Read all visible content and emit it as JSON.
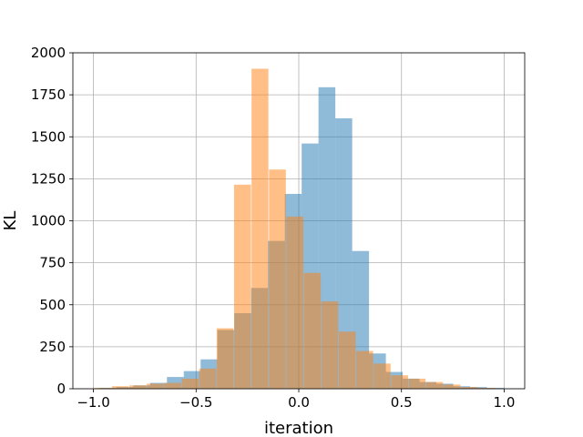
{
  "chart_data": {
    "type": "histogram",
    "title": "",
    "xlabel": "iteration",
    "ylabel": "KL",
    "xlim": [
      -1.1,
      1.1
    ],
    "ylim": [
      0,
      2000
    ],
    "xticks": [
      -1.0,
      -0.5,
      0.0,
      0.5,
      1.0
    ],
    "xtick_labels": [
      "−1.0",
      "−0.5",
      "0.0",
      "0.5",
      "1.0"
    ],
    "yticks": [
      0,
      250,
      500,
      750,
      1000,
      1250,
      1500,
      1750,
      2000
    ],
    "ytick_labels": [
      "0",
      "250",
      "500",
      "750",
      "1000",
      "1250",
      "1500",
      "1750",
      "2000"
    ],
    "grid": true,
    "legend": "none",
    "bin_width": 0.082,
    "series": [
      {
        "color": "#1f77b4",
        "alpha": 0.5,
        "bin_starts": [
          -0.97,
          -0.888,
          -0.806,
          -0.724,
          -0.642,
          -0.56,
          -0.478,
          -0.396,
          -0.314,
          -0.232,
          -0.15,
          -0.068,
          0.014,
          0.096,
          0.178,
          0.26,
          0.342,
          0.424,
          0.506,
          0.588,
          0.67,
          0.752,
          0.834,
          0.916
        ],
        "values": [
          5,
          10,
          20,
          35,
          70,
          105,
          175,
          350,
          450,
          600,
          880,
          1160,
          1460,
          1795,
          1610,
          820,
          210,
          100,
          60,
          40,
          30,
          15,
          10,
          5
        ]
      },
      {
        "color": "#ff7f0e",
        "alpha": 0.5,
        "bin_starts": [
          -0.995,
          -0.91,
          -0.825,
          -0.74,
          -0.655,
          -0.57,
          -0.485,
          -0.4,
          -0.315,
          -0.23,
          -0.145,
          -0.06,
          0.025,
          0.11,
          0.195,
          0.28,
          0.365,
          0.45,
          0.535,
          0.62,
          0.705,
          0.79,
          0.875
        ],
        "bin_width": 0.082,
        "values": [
          5,
          15,
          20,
          30,
          35,
          60,
          120,
          360,
          1215,
          1905,
          1305,
          1025,
          690,
          520,
          340,
          225,
          150,
          80,
          60,
          40,
          25,
          10,
          5
        ]
      }
    ]
  }
}
